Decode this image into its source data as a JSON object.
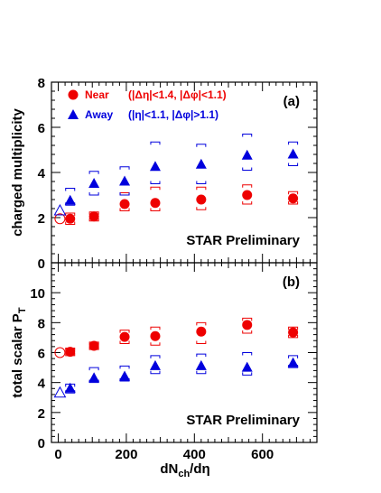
{
  "chart_data": [
    {
      "type": "scatter",
      "panel_label": "(a)",
      "ylabel": "charged multiplicity",
      "ylim": [
        0,
        8
      ],
      "yticks": [
        0,
        2,
        4,
        6,
        8
      ],
      "xlim": [
        -20,
        760
      ],
      "annotation": "STAR Preliminary",
      "legend": [
        {
          "name": "Near",
          "cuts": "(|Δη|<1.4, |Δφ|<1.1)",
          "color": "#ee0000",
          "marker": "circle"
        },
        {
          "name": "Away",
          "cuts": "(|η|<1.1, |Δφ|>1.1)",
          "color": "#0000dd",
          "marker": "triangle"
        }
      ],
      "series": [
        {
          "name": "Near",
          "color": "#ee0000",
          "marker": "circle",
          "x": [
            35,
            105,
            195,
            285,
            420,
            555,
            690
          ],
          "y": [
            1.95,
            2.05,
            2.6,
            2.65,
            2.8,
            3.0,
            2.85
          ],
          "sys_low": [
            1.7,
            1.85,
            2.3,
            2.3,
            2.35,
            2.6,
            2.6
          ],
          "sys_high": [
            2.2,
            2.25,
            3.1,
            3.35,
            3.35,
            3.45,
            3.15
          ],
          "open_point": {
            "x": 5,
            "y": 1.95
          }
        },
        {
          "name": "Away",
          "color": "#0000dd",
          "marker": "triangle",
          "x": [
            35,
            105,
            195,
            285,
            420,
            555,
            690
          ],
          "y": [
            2.75,
            3.5,
            3.6,
            4.25,
            4.35,
            4.75,
            4.8
          ],
          "sys_low": [
            2.55,
            3.0,
            3.0,
            3.5,
            3.5,
            4.1,
            4.3
          ],
          "sys_high": [
            3.3,
            4.05,
            4.25,
            5.35,
            5.25,
            5.7,
            5.35
          ],
          "open_point": {
            "x": 5,
            "y": 2.3
          }
        }
      ]
    },
    {
      "type": "scatter",
      "panel_label": "(b)",
      "ylabel": "total scalar P",
      "ylabel_sub": "T",
      "xlabel": "dN",
      "xlabel_sub": "ch",
      "xlabel_tail": "/dη",
      "ylim": [
        0,
        12
      ],
      "yticks": [
        0,
        2,
        4,
        6,
        8,
        10
      ],
      "xlim": [
        -20,
        760
      ],
      "xticks": [
        0,
        200,
        400,
        600
      ],
      "annotation": "STAR Preliminary",
      "series": [
        {
          "name": "Near",
          "color": "#ee0000",
          "marker": "circle",
          "x": [
            35,
            105,
            195,
            285,
            420,
            555,
            690
          ],
          "y": [
            6.05,
            6.45,
            7.05,
            7.1,
            7.4,
            7.85,
            7.35
          ],
          "sys_low": [
            5.8,
            6.2,
            6.6,
            6.5,
            6.6,
            7.3,
            7.0
          ],
          "sys_high": [
            6.3,
            6.7,
            7.5,
            7.7,
            8.0,
            8.3,
            7.7
          ],
          "open_point": {
            "x": 5,
            "y": 6.0
          }
        },
        {
          "name": "Away",
          "color": "#0000dd",
          "marker": "triangle",
          "x": [
            35,
            105,
            195,
            285,
            420,
            555,
            690
          ],
          "y": [
            3.6,
            4.3,
            4.4,
            5.1,
            5.1,
            5.0,
            5.3
          ],
          "sys_low": [
            3.3,
            4.0,
            4.1,
            4.6,
            4.6,
            4.5,
            5.0
          ],
          "sys_high": [
            3.9,
            5.0,
            5.1,
            5.8,
            5.9,
            6.0,
            5.8
          ],
          "open_point": {
            "x": 5,
            "y": 3.3
          }
        }
      ]
    }
  ]
}
